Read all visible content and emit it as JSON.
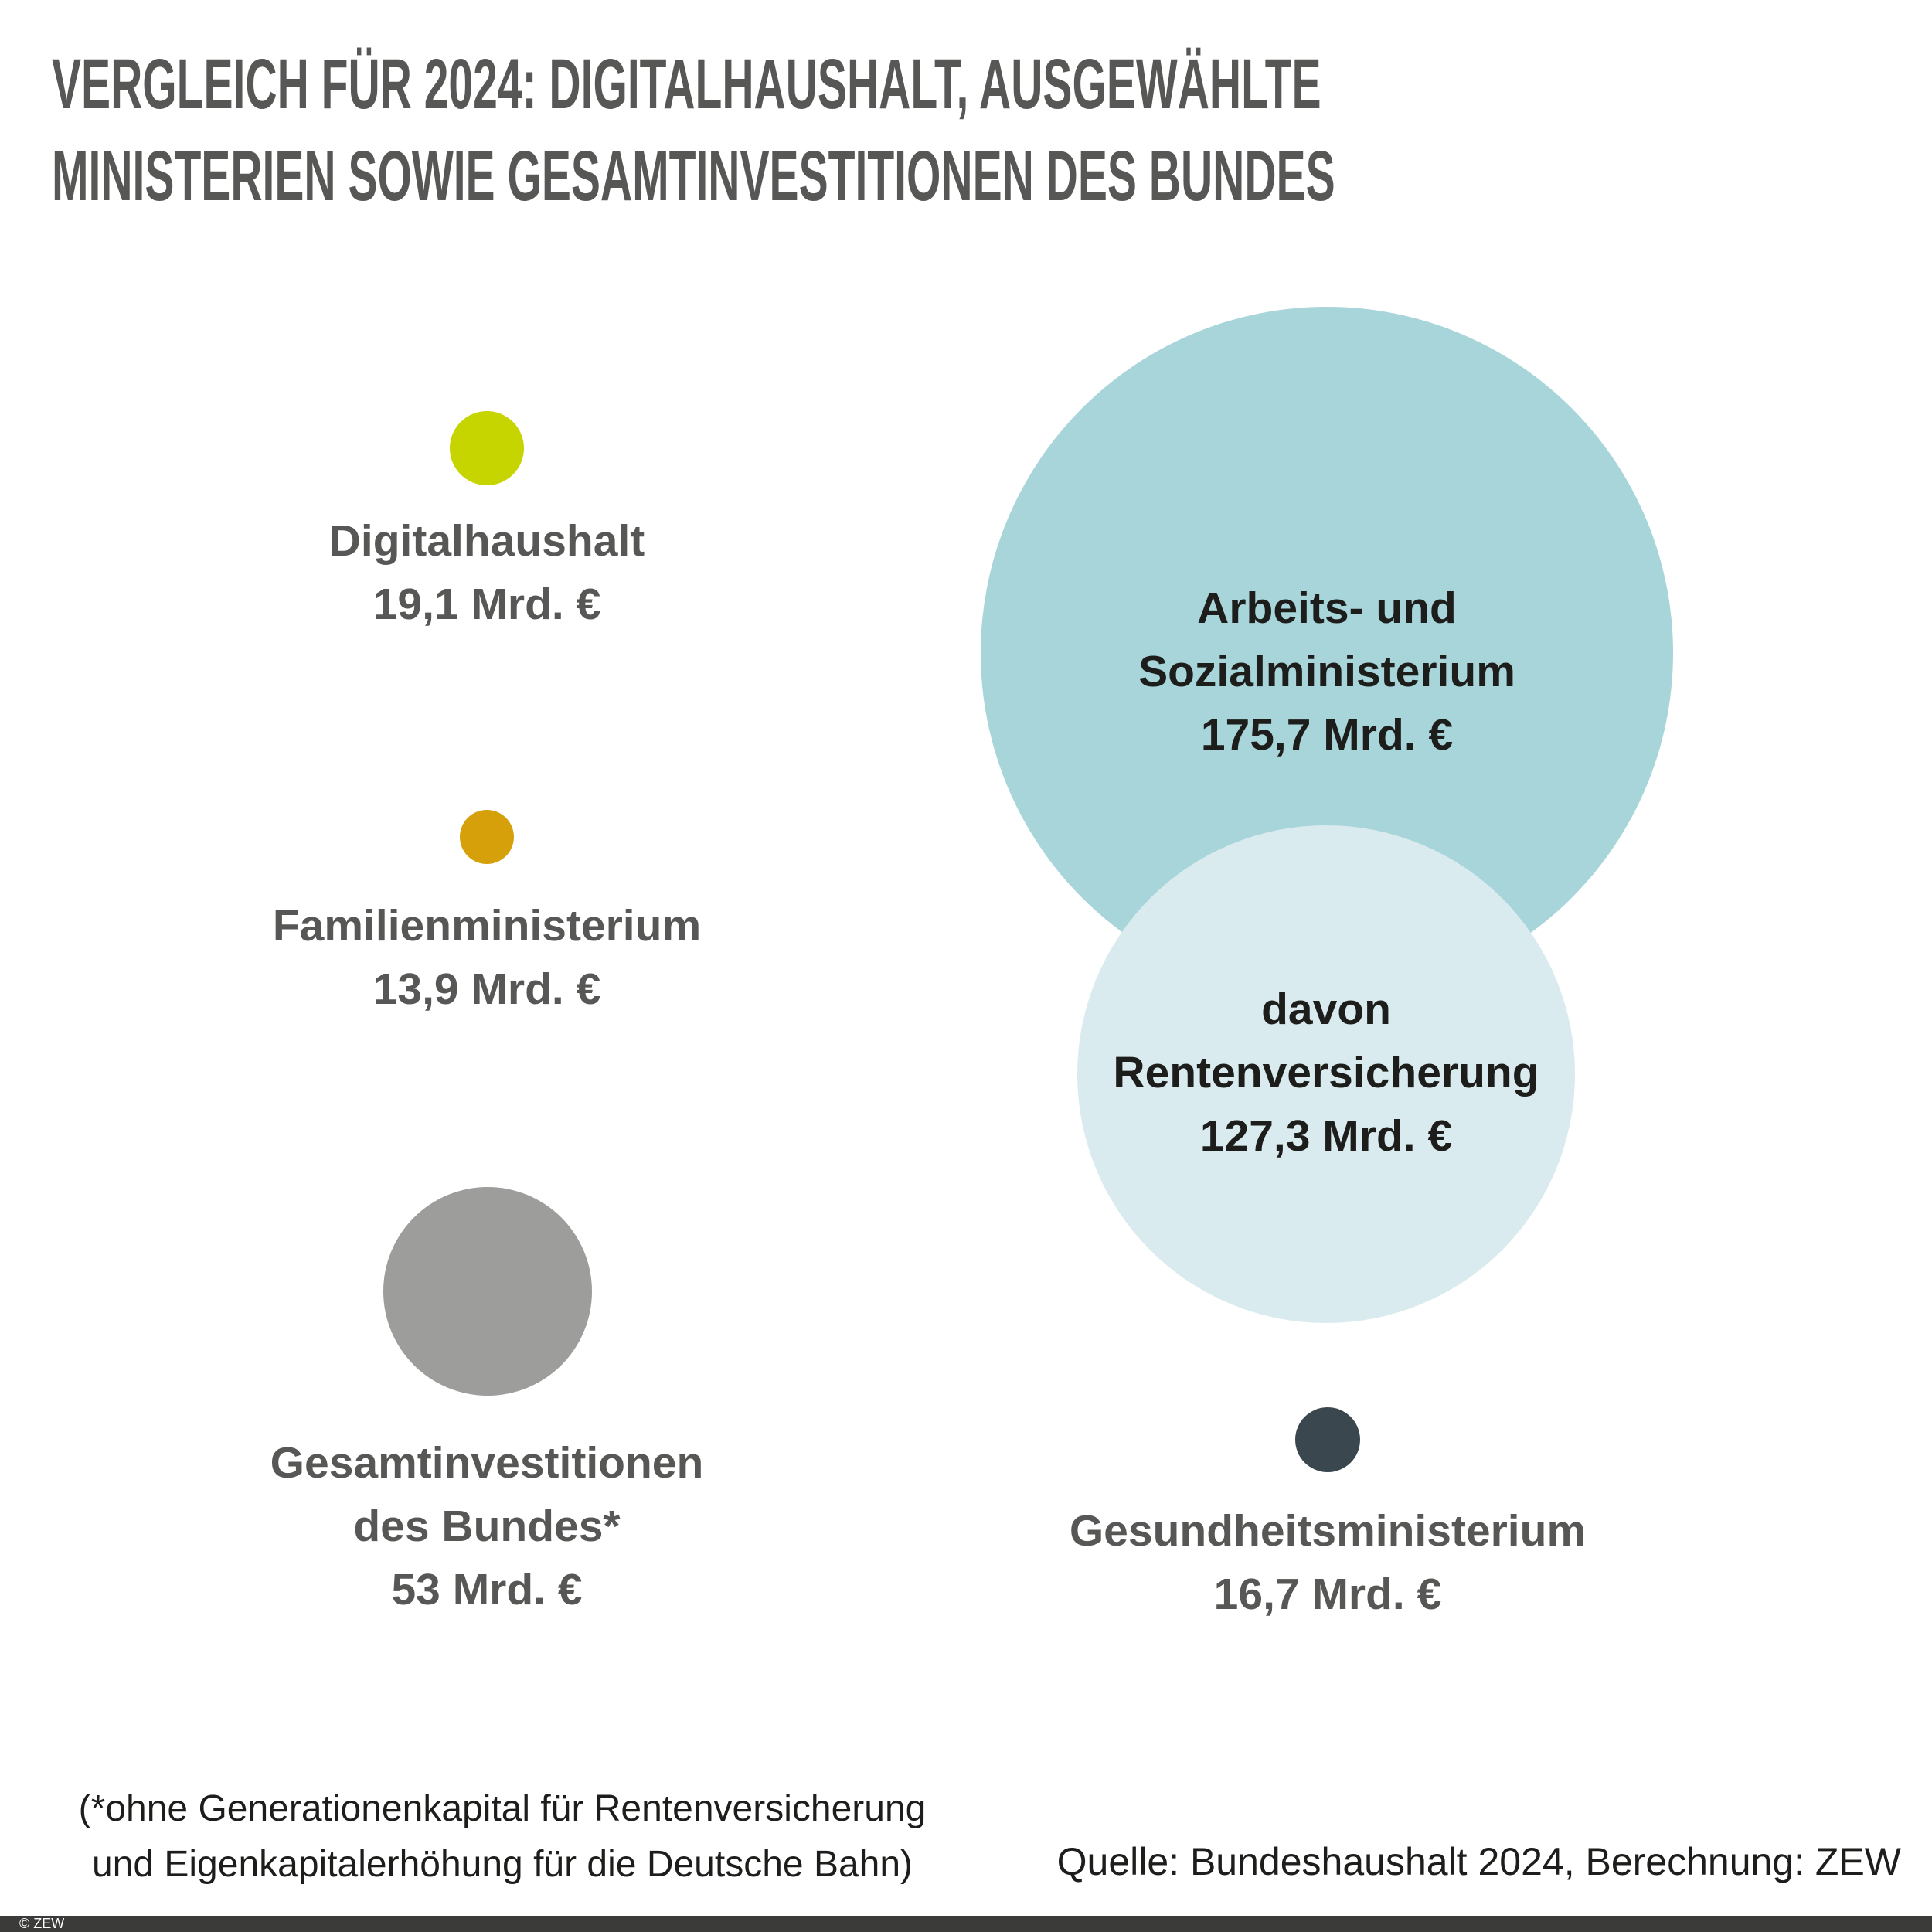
{
  "title": {
    "line1": "VERGLEICH FÜR 2024: DIGITALHAUSHALT, AUSGEWÄHLTE",
    "line2": "MINISTERIEN SOWIE GESAMTINVESTITIONEN DES BUNDES"
  },
  "chart_data": {
    "type": "bubble",
    "title": "Vergleich für 2024: Digitalhaushalt, ausgewählte Ministerien sowie Gesamtinvestitionen des Bundes",
    "unit": "Mrd. €",
    "year": "2024",
    "items": [
      {
        "label": "Digitalhaushalt",
        "value": 19.1,
        "value_text": "19,1 Mrd. €",
        "color": "#c6d400",
        "label_position": "below"
      },
      {
        "label": "Familienministerium",
        "value": 13.9,
        "value_text": "13,9 Mrd. €",
        "color": "#d6a00a",
        "label_position": "below"
      },
      {
        "label": "Gesamtinvestitionen des Bundes*",
        "value": 53,
        "value_text": "53 Mrd. €",
        "color": "#9d9d9c",
        "label_position": "below"
      },
      {
        "label": "Arbeits- und Sozialministerium",
        "value": 175.7,
        "value_text": "175,7 Mrd. €",
        "color": "#a7d5da",
        "label_position": "inside"
      },
      {
        "label": "davon Rentenversicherung",
        "value": 127.3,
        "value_text": "127,3 Mrd. €",
        "color": "#d9ebee",
        "label_position": "inside",
        "overlaps": "Arbeits- und Sozialministerium"
      },
      {
        "label": "Gesundheitsministerium",
        "value": 16.7,
        "value_text": "16,7 Mrd. €",
        "color": "#3a474e",
        "label_position": "below"
      }
    ],
    "layout_hints": {
      "radius_proportional_to": "value",
      "legend": "none",
      "grid": false,
      "axes": "none"
    }
  },
  "bubbles": [
    {
      "id": "digitalhaushalt",
      "lines": [
        "Digitalhaushalt",
        "19,1 Mrd. €"
      ]
    },
    {
      "id": "familienministerium",
      "lines": [
        "Familienministerium",
        "13,9 Mrd. €"
      ]
    },
    {
      "id": "gesamtinvestitionen",
      "lines": [
        "Gesamtinvestitionen",
        "des Bundes*",
        "53 Mrd. €"
      ]
    },
    {
      "id": "arbeits-sozialministerium",
      "lines": [
        "Arbeits- und",
        "Sozialministerium",
        "175,7 Mrd. €"
      ]
    },
    {
      "id": "rentenversicherung",
      "lines": [
        "davon",
        "Rentenversicherung",
        "127,3 Mrd. €"
      ]
    },
    {
      "id": "gesundheitsministerium",
      "lines": [
        "Gesundheitsministerium",
        "16,7 Mrd. €"
      ]
    }
  ],
  "footnote": {
    "line1": "(*ohne Generationenkapital für Rentenversicherung",
    "line2": "und Eigenkapitalerhöhung für die Deutsche Bahn)"
  },
  "source": {
    "text": "Quelle: Bundeshaushalt 2024, Berechnung: ZEW"
  },
  "footer": {
    "copyright": "© ZEW"
  },
  "colors": {
    "background": "#ffffff",
    "title_text": "#575756",
    "label_text": "#575756",
    "bubble_text": "#1d1d1b",
    "footnote_text": "#1d1d1b",
    "footer_bar": "#3b3b3a",
    "footer_text": "#ffffff",
    "lime": "#c6d400",
    "ocher": "#d6a00a",
    "gray": "#9d9d9c",
    "teal": "#a7d5da",
    "light_blue": "#d9ebee",
    "dark_slate": "#3a474e"
  }
}
